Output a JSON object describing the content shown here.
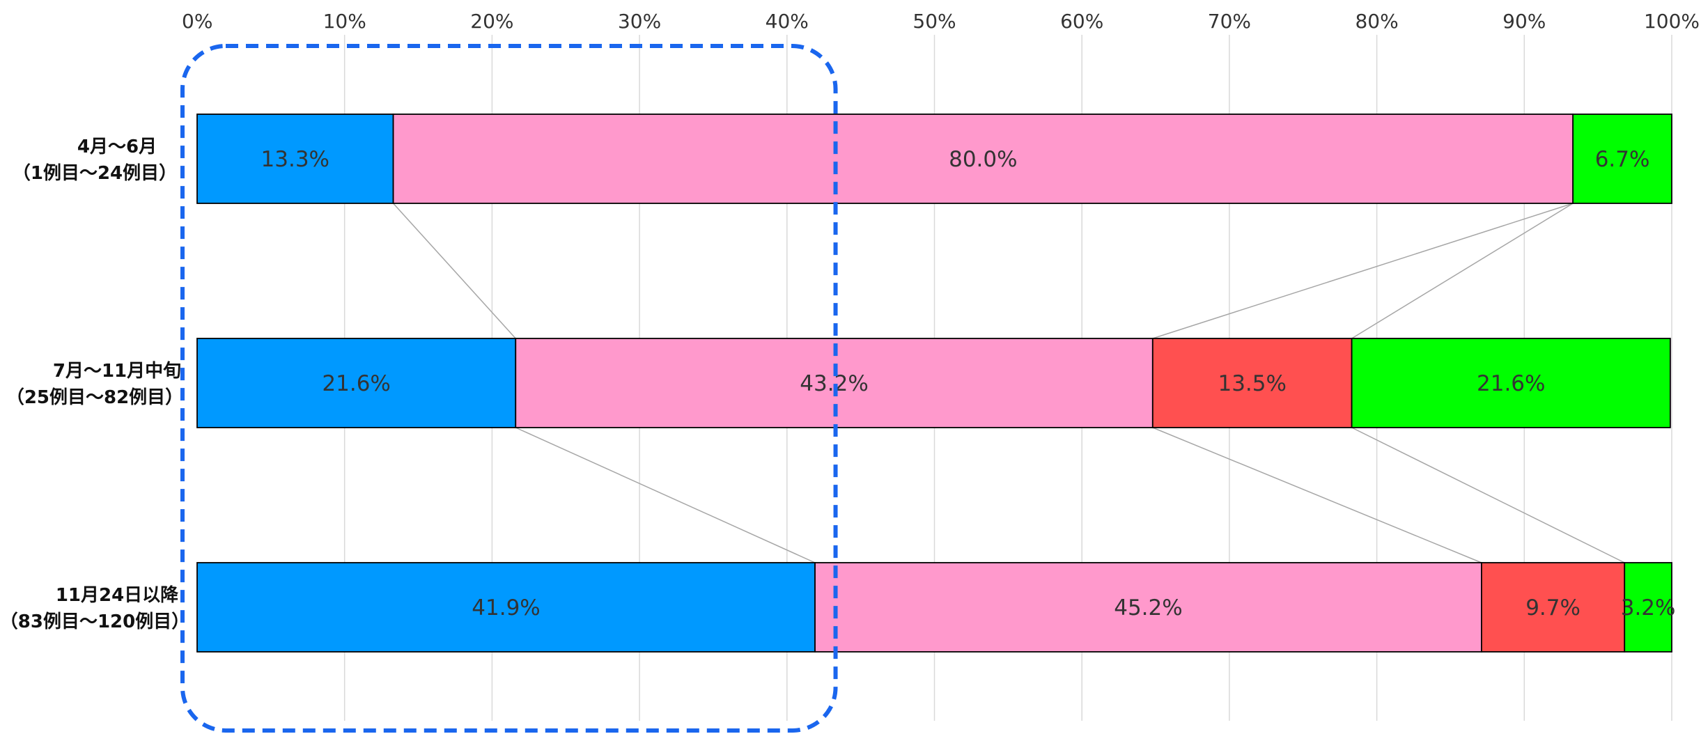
{
  "chart_data": {
    "type": "bar",
    "orientation": "horizontal",
    "stacked": "percent",
    "title": "",
    "xlabel": "",
    "ylabel": "",
    "xlim": [
      0,
      100
    ],
    "x_ticks": [
      "0%",
      "10%",
      "20%",
      "30%",
      "40%",
      "50%",
      "60%",
      "70%",
      "80%",
      "90%",
      "100%"
    ],
    "grid": true,
    "legend": "none",
    "categories": [
      {
        "line1": "4月～6月",
        "line2": "（1例目～24例目）"
      },
      {
        "line1": "7月～11月中旬",
        "line2": "（25例目～82例目）"
      },
      {
        "line1": "11月24日以降",
        "line2": "（83例目～120例目）"
      }
    ],
    "series": [
      {
        "color": "#0099ff",
        "values": [
          13.3,
          21.6,
          41.9
        ],
        "labels": [
          "13.3%",
          "21.6%",
          "41.9%"
        ]
      },
      {
        "color": "#ff99cc",
        "values": [
          80.0,
          43.2,
          45.2
        ],
        "labels": [
          "80.0%",
          "43.2%",
          "45.2%"
        ]
      },
      {
        "color": "#ff5050",
        "values": [
          0,
          13.5,
          9.7
        ],
        "labels": [
          "",
          "13.5%",
          "9.7%"
        ]
      },
      {
        "color": "#00ff00",
        "values": [
          6.7,
          21.6,
          3.2
        ],
        "labels": [
          "6.7%",
          "21.6%",
          "3.2%"
        ]
      }
    ],
    "series_lines": true,
    "highlight": {
      "shape": "dashed-rounded-rect",
      "color": "#1a66ee",
      "x_range": [
        0,
        43.2
      ]
    }
  }
}
